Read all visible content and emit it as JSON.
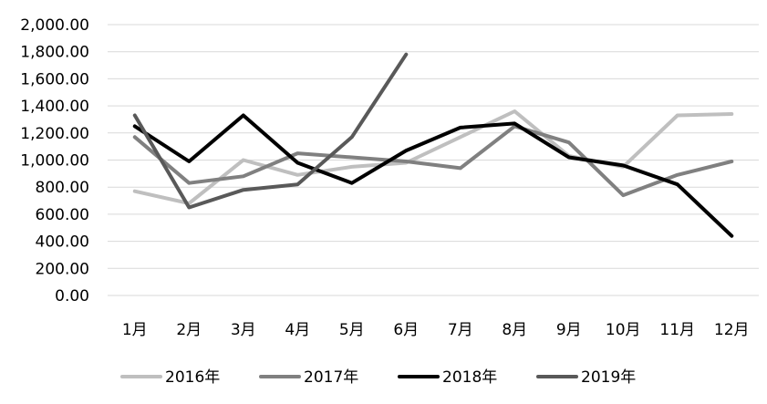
{
  "chart_data": {
    "type": "line",
    "title": "",
    "xlabel": "",
    "ylabel": "",
    "categories": [
      "1月",
      "2月",
      "3月",
      "4月",
      "5月",
      "6月",
      "7月",
      "8月",
      "9月",
      "10月",
      "11月",
      "12月"
    ],
    "ylim": [
      0,
      2000
    ],
    "yticks": [
      0,
      200,
      400,
      600,
      800,
      1000,
      1200,
      1400,
      1600,
      1800,
      2000
    ],
    "ytick_labels": [
      "0.00",
      "200.00",
      "400.00",
      "600.00",
      "800.00",
      "1,000.00",
      "1,200.00",
      "1,400.00",
      "1,600.00",
      "1,800.00",
      "2,000.00"
    ],
    "grid": true,
    "legend_position": "bottom",
    "series": [
      {
        "name": "2016年",
        "color": "#bfbfbf",
        "values": [
          770,
          680,
          1000,
          890,
          950,
          980,
          1170,
          1360,
          1030,
          950,
          1330,
          1340
        ]
      },
      {
        "name": "2017年",
        "color": "#808080",
        "values": [
          1170,
          830,
          880,
          1050,
          1020,
          990,
          940,
          1250,
          1130,
          740,
          890,
          990
        ]
      },
      {
        "name": "2018年",
        "color": "#000000",
        "values": [
          1250,
          990,
          1330,
          980,
          830,
          1070,
          1240,
          1270,
          1020,
          960,
          820,
          440
        ]
      },
      {
        "name": "2019年",
        "color": "#595959",
        "values": [
          1330,
          650,
          780,
          820,
          1170,
          1780,
          null,
          null,
          null,
          null,
          null,
          null
        ]
      }
    ]
  }
}
